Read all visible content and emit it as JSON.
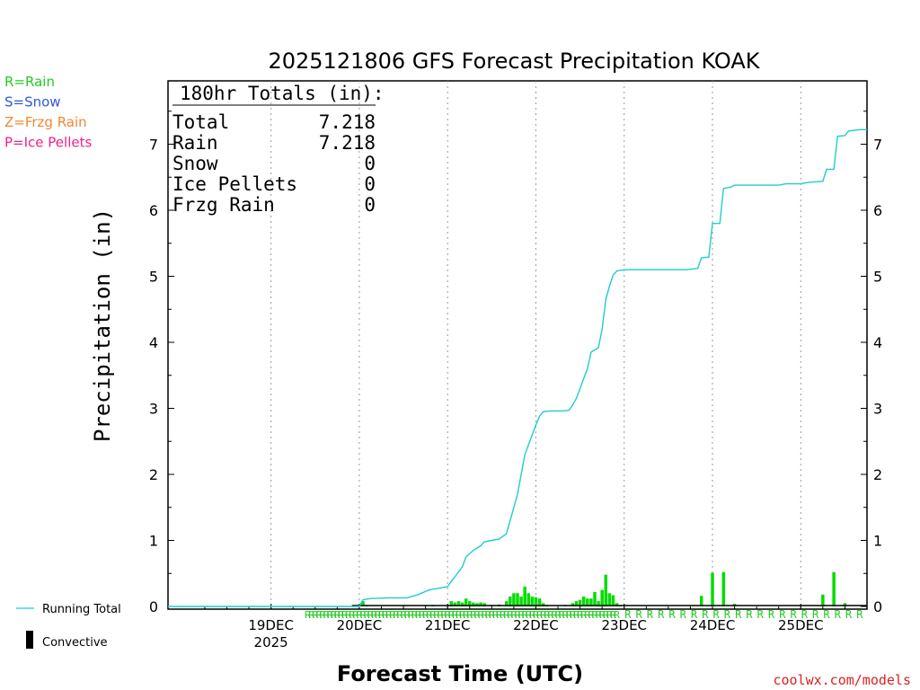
{
  "chart_data": {
    "type": "line",
    "title": "2025121806 GFS Forecast Precipitation KOAK",
    "xlabel": "Forecast Time (UTC)",
    "ylabel": "Precipitation (in)",
    "ylim": [
      0,
      8
    ],
    "x_unit": "forecast_hour",
    "xlim": [
      -10,
      180
    ],
    "y_ticks": [
      0,
      1,
      2,
      3,
      4,
      5,
      6,
      7
    ],
    "x_ticks": [
      {
        "hour": 18,
        "label": "19DEC",
        "sublabel": "2025"
      },
      {
        "hour": 42,
        "label": "20DEC",
        "sublabel": ""
      },
      {
        "hour": 66,
        "label": "21DEC",
        "sublabel": ""
      },
      {
        "hour": 90,
        "label": "22DEC",
        "sublabel": ""
      },
      {
        "hour": 114,
        "label": "23DEC",
        "sublabel": ""
      },
      {
        "hour": 138,
        "label": "24DEC",
        "sublabel": ""
      },
      {
        "hour": 162,
        "label": "25DEC",
        "sublabel": ""
      }
    ],
    "legend_left": [
      {
        "text": "R=Rain",
        "color": "#22cc22"
      },
      {
        "text": "S=Snow",
        "color": "#3355dd"
      },
      {
        "text": "Z=Frzg Rain",
        "color": "#ee8833"
      },
      {
        "text": "P=Ice Pellets",
        "color": "#ee2288"
      }
    ],
    "legend_bottom": [
      {
        "text": "Running Total",
        "color": "#22cccc"
      },
      {
        "text": "Convective",
        "color": "#000000"
      }
    ],
    "totals": {
      "header": "180hr Totals (in):",
      "rows": [
        {
          "label": "Total",
          "value": "7.218"
        },
        {
          "label": "Rain",
          "value": "7.218"
        },
        {
          "label": "Snow",
          "value": "0"
        },
        {
          "label": "Ice Pellets",
          "value": "0"
        },
        {
          "label": "Frzg Rain",
          "value": "0"
        }
      ]
    },
    "series": [
      {
        "name": "Running Total",
        "color": "#22cccc",
        "points": [
          [
            -10,
            0.0
          ],
          [
            40,
            0.0
          ],
          [
            42,
            0.0
          ],
          [
            43,
            0.1
          ],
          [
            45,
            0.12
          ],
          [
            50,
            0.13
          ],
          [
            55,
            0.13
          ],
          [
            58,
            0.18
          ],
          [
            61,
            0.25
          ],
          [
            64,
            0.28
          ],
          [
            66,
            0.3
          ],
          [
            67,
            0.38
          ],
          [
            68,
            0.45
          ],
          [
            70,
            0.6
          ],
          [
            71,
            0.75
          ],
          [
            73,
            0.85
          ],
          [
            75,
            0.92
          ],
          [
            76,
            0.98
          ],
          [
            78,
            1.0
          ],
          [
            80,
            1.02
          ],
          [
            82,
            1.1
          ],
          [
            83,
            1.3
          ],
          [
            84,
            1.5
          ],
          [
            85,
            1.7
          ],
          [
            86,
            2.0
          ],
          [
            87,
            2.3
          ],
          [
            88,
            2.45
          ],
          [
            89,
            2.6
          ],
          [
            90,
            2.75
          ],
          [
            91,
            2.88
          ],
          [
            92,
            2.95
          ],
          [
            94,
            2.96
          ],
          [
            97,
            2.96
          ],
          [
            99,
            2.97
          ],
          [
            100,
            3.05
          ],
          [
            101,
            3.15
          ],
          [
            102,
            3.3
          ],
          [
            103,
            3.45
          ],
          [
            104,
            3.6
          ],
          [
            105,
            3.85
          ],
          [
            107,
            3.92
          ],
          [
            108,
            4.2
          ],
          [
            109,
            4.65
          ],
          [
            110,
            4.85
          ],
          [
            111,
            5.02
          ],
          [
            112,
            5.08
          ],
          [
            114,
            5.1
          ],
          [
            120,
            5.1
          ],
          [
            126,
            5.1
          ],
          [
            131,
            5.1
          ],
          [
            134,
            5.12
          ],
          [
            135,
            5.28
          ],
          [
            137,
            5.29
          ],
          [
            138,
            5.8
          ],
          [
            140,
            5.8
          ],
          [
            141,
            6.33
          ],
          [
            143,
            6.35
          ],
          [
            144,
            6.38
          ],
          [
            150,
            6.38
          ],
          [
            156,
            6.38
          ],
          [
            158,
            6.4
          ],
          [
            162,
            6.4
          ],
          [
            164,
            6.42
          ],
          [
            168,
            6.44
          ],
          [
            169,
            6.62
          ],
          [
            171,
            6.62
          ],
          [
            172,
            7.12
          ],
          [
            174,
            7.13
          ],
          [
            175,
            7.2
          ],
          [
            178,
            7.22
          ],
          [
            180,
            7.22
          ]
        ]
      },
      {
        "name": "Rain (per period)",
        "color": "#00dd00",
        "bars": [
          [
            43,
            0.08
          ],
          [
            44,
            0.02
          ],
          [
            54,
            0.01
          ],
          [
            60,
            0.02
          ],
          [
            62,
            0.02
          ],
          [
            66,
            0.02
          ],
          [
            67,
            0.08
          ],
          [
            68,
            0.06
          ],
          [
            69,
            0.08
          ],
          [
            70,
            0.06
          ],
          [
            71,
            0.12
          ],
          [
            72,
            0.08
          ],
          [
            73,
            0.06
          ],
          [
            74,
            0.05
          ],
          [
            75,
            0.06
          ],
          [
            76,
            0.05
          ],
          [
            78,
            0.02
          ],
          [
            80,
            0.03
          ],
          [
            82,
            0.08
          ],
          [
            83,
            0.15
          ],
          [
            84,
            0.2
          ],
          [
            85,
            0.2
          ],
          [
            86,
            0.15
          ],
          [
            87,
            0.3
          ],
          [
            88,
            0.2
          ],
          [
            89,
            0.15
          ],
          [
            90,
            0.14
          ],
          [
            91,
            0.12
          ],
          [
            92,
            0.05
          ],
          [
            93,
            0.02
          ],
          [
            98,
            0.02
          ],
          [
            100,
            0.05
          ],
          [
            101,
            0.08
          ],
          [
            102,
            0.1
          ],
          [
            103,
            0.15
          ],
          [
            104,
            0.12
          ],
          [
            105,
            0.12
          ],
          [
            106,
            0.22
          ],
          [
            107,
            0.08
          ],
          [
            108,
            0.25
          ],
          [
            109,
            0.48
          ],
          [
            110,
            0.2
          ],
          [
            111,
            0.17
          ],
          [
            112,
            0.05
          ],
          [
            113,
            0.02
          ],
          [
            135,
            0.16
          ],
          [
            138,
            0.51
          ],
          [
            141,
            0.52
          ],
          [
            144,
            0.04
          ],
          [
            168,
            0.18
          ],
          [
            171,
            0.52
          ],
          [
            174,
            0.05
          ]
        ]
      }
    ],
    "precip_type_markers": {
      "symbol": "R",
      "start_hour": 28,
      "dense_end_hour": 112
    },
    "source_credit": "coolwx.com/models"
  }
}
